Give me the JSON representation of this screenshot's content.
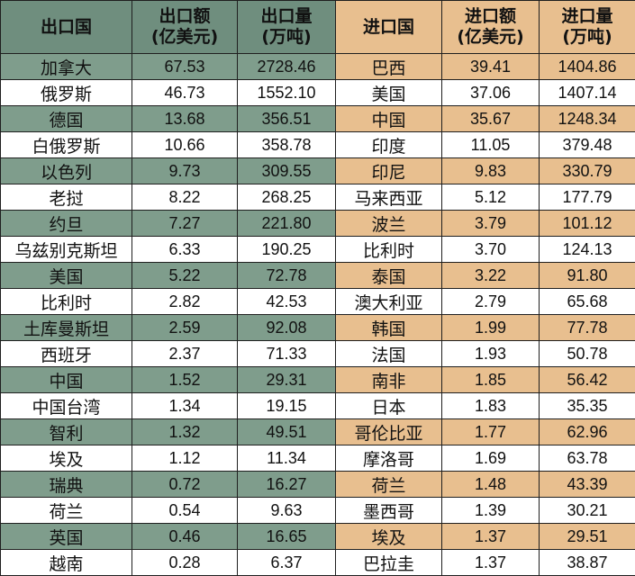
{
  "header": {
    "export_country": "出口国",
    "export_amount_l1": "出口额",
    "export_amount_l2": "(亿美元)",
    "export_volume_l1": "出口量",
    "export_volume_l2": "(万吨)",
    "import_country": "进口国",
    "import_amount_l1": "进口额",
    "import_amount_l2": "(亿美元)",
    "import_volume_l1": "进口量",
    "import_volume_l2": "(万吨)"
  },
  "rows": [
    {
      "ex_country": "加拿大",
      "ex_amount": "67.53",
      "ex_volume": "2728.46",
      "im_country": "巴西",
      "im_amount": "39.41",
      "im_volume": "1404.86"
    },
    {
      "ex_country": "俄罗斯",
      "ex_amount": "46.73",
      "ex_volume": "1552.10",
      "im_country": "美国",
      "im_amount": "37.06",
      "im_volume": "1407.14"
    },
    {
      "ex_country": "德国",
      "ex_amount": "13.68",
      "ex_volume": "356.51",
      "im_country": "中国",
      "im_amount": "35.67",
      "im_volume": "1248.34"
    },
    {
      "ex_country": "白俄罗斯",
      "ex_amount": "10.66",
      "ex_volume": "358.78",
      "im_country": "印度",
      "im_amount": "11.05",
      "im_volume": "379.48"
    },
    {
      "ex_country": "以色列",
      "ex_amount": "9.73",
      "ex_volume": "309.55",
      "im_country": "印尼",
      "im_amount": "9.83",
      "im_volume": "330.79"
    },
    {
      "ex_country": "老挝",
      "ex_amount": "8.22",
      "ex_volume": "268.25",
      "im_country": "马来西亚",
      "im_amount": "5.12",
      "im_volume": "177.79"
    },
    {
      "ex_country": "约旦",
      "ex_amount": "7.27",
      "ex_volume": "221.80",
      "im_country": "波兰",
      "im_amount": "3.79",
      "im_volume": "101.12"
    },
    {
      "ex_country": "乌兹别克斯坦",
      "ex_amount": "6.33",
      "ex_volume": "190.25",
      "im_country": "比利时",
      "im_amount": "3.70",
      "im_volume": "124.13"
    },
    {
      "ex_country": "美国",
      "ex_amount": "5.22",
      "ex_volume": "72.78",
      "im_country": "泰国",
      "im_amount": "3.22",
      "im_volume": "91.80"
    },
    {
      "ex_country": "比利时",
      "ex_amount": "2.82",
      "ex_volume": "42.53",
      "im_country": "澳大利亚",
      "im_amount": "2.79",
      "im_volume": "65.68"
    },
    {
      "ex_country": "土库曼斯坦",
      "ex_amount": "2.59",
      "ex_volume": "92.08",
      "im_country": "韩国",
      "im_amount": "1.99",
      "im_volume": "77.78"
    },
    {
      "ex_country": "西班牙",
      "ex_amount": "2.37",
      "ex_volume": "71.33",
      "im_country": "法国",
      "im_amount": "1.93",
      "im_volume": "50.78"
    },
    {
      "ex_country": "中国",
      "ex_amount": "1.52",
      "ex_volume": "29.31",
      "im_country": "南非",
      "im_amount": "1.85",
      "im_volume": "56.42"
    },
    {
      "ex_country": "中国台湾",
      "ex_amount": "1.34",
      "ex_volume": "19.15",
      "im_country": "日本",
      "im_amount": "1.83",
      "im_volume": "35.35"
    },
    {
      "ex_country": "智利",
      "ex_amount": "1.32",
      "ex_volume": "49.51",
      "im_country": "哥伦比亚",
      "im_amount": "1.77",
      "im_volume": "62.96"
    },
    {
      "ex_country": "埃及",
      "ex_amount": "1.12",
      "ex_volume": "11.34",
      "im_country": "摩洛哥",
      "im_amount": "1.69",
      "im_volume": "63.78"
    },
    {
      "ex_country": "瑞典",
      "ex_amount": "0.72",
      "ex_volume": "16.27",
      "im_country": "荷兰",
      "im_amount": "1.48",
      "im_volume": "43.39"
    },
    {
      "ex_country": "荷兰",
      "ex_amount": "0.54",
      "ex_volume": "9.63",
      "im_country": "墨西哥",
      "im_amount": "1.39",
      "im_volume": "30.21"
    },
    {
      "ex_country": "英国",
      "ex_amount": "0.46",
      "ex_volume": "16.65",
      "im_country": "埃及",
      "im_amount": "1.37",
      "im_volume": "29.51"
    },
    {
      "ex_country": "越南",
      "ex_amount": "0.28",
      "ex_volume": "6.37",
      "im_country": "巴拉圭",
      "im_amount": "1.37",
      "im_volume": "38.87"
    }
  ],
  "colors": {
    "export_header": "#6f8e7e",
    "import_header": "#e8bf8f",
    "export_shade": "#7f9d8c",
    "import_shade": "#e8bf8f"
  }
}
